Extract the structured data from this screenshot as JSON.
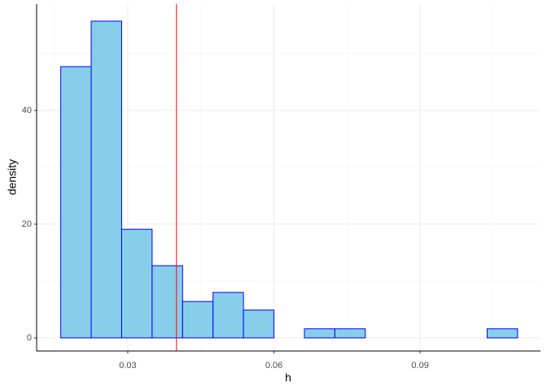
{
  "chart_data": {
    "type": "histogram",
    "x_label": "h",
    "y_label": "density",
    "bins": [
      0.01625,
      0.0225,
      0.02875,
      0.035,
      0.04125,
      0.0475,
      0.05375,
      0.06,
      0.06625,
      0.0725,
      0.07875,
      0.085,
      0.09125,
      0.0975,
      0.10375,
      0.11
    ],
    "values": [
      47.7,
      55.7,
      19.1,
      12.7,
      6.4,
      8.0,
      4.9,
      0,
      1.6,
      1.6,
      0,
      0,
      0,
      0,
      1.6
    ],
    "color": "#87ceeb",
    "edge_color": "#0000ff",
    "vline": 0.04,
    "vline_color": "#ff0000",
    "xlim": [
      0.0113,
      0.1147
    ],
    "xticks": [
      0.03,
      0.06,
      0.09
    ],
    "ylim": [
      -2.3,
      58.7
    ],
    "yticks": [
      0,
      20,
      40
    ],
    "grid": true
  }
}
